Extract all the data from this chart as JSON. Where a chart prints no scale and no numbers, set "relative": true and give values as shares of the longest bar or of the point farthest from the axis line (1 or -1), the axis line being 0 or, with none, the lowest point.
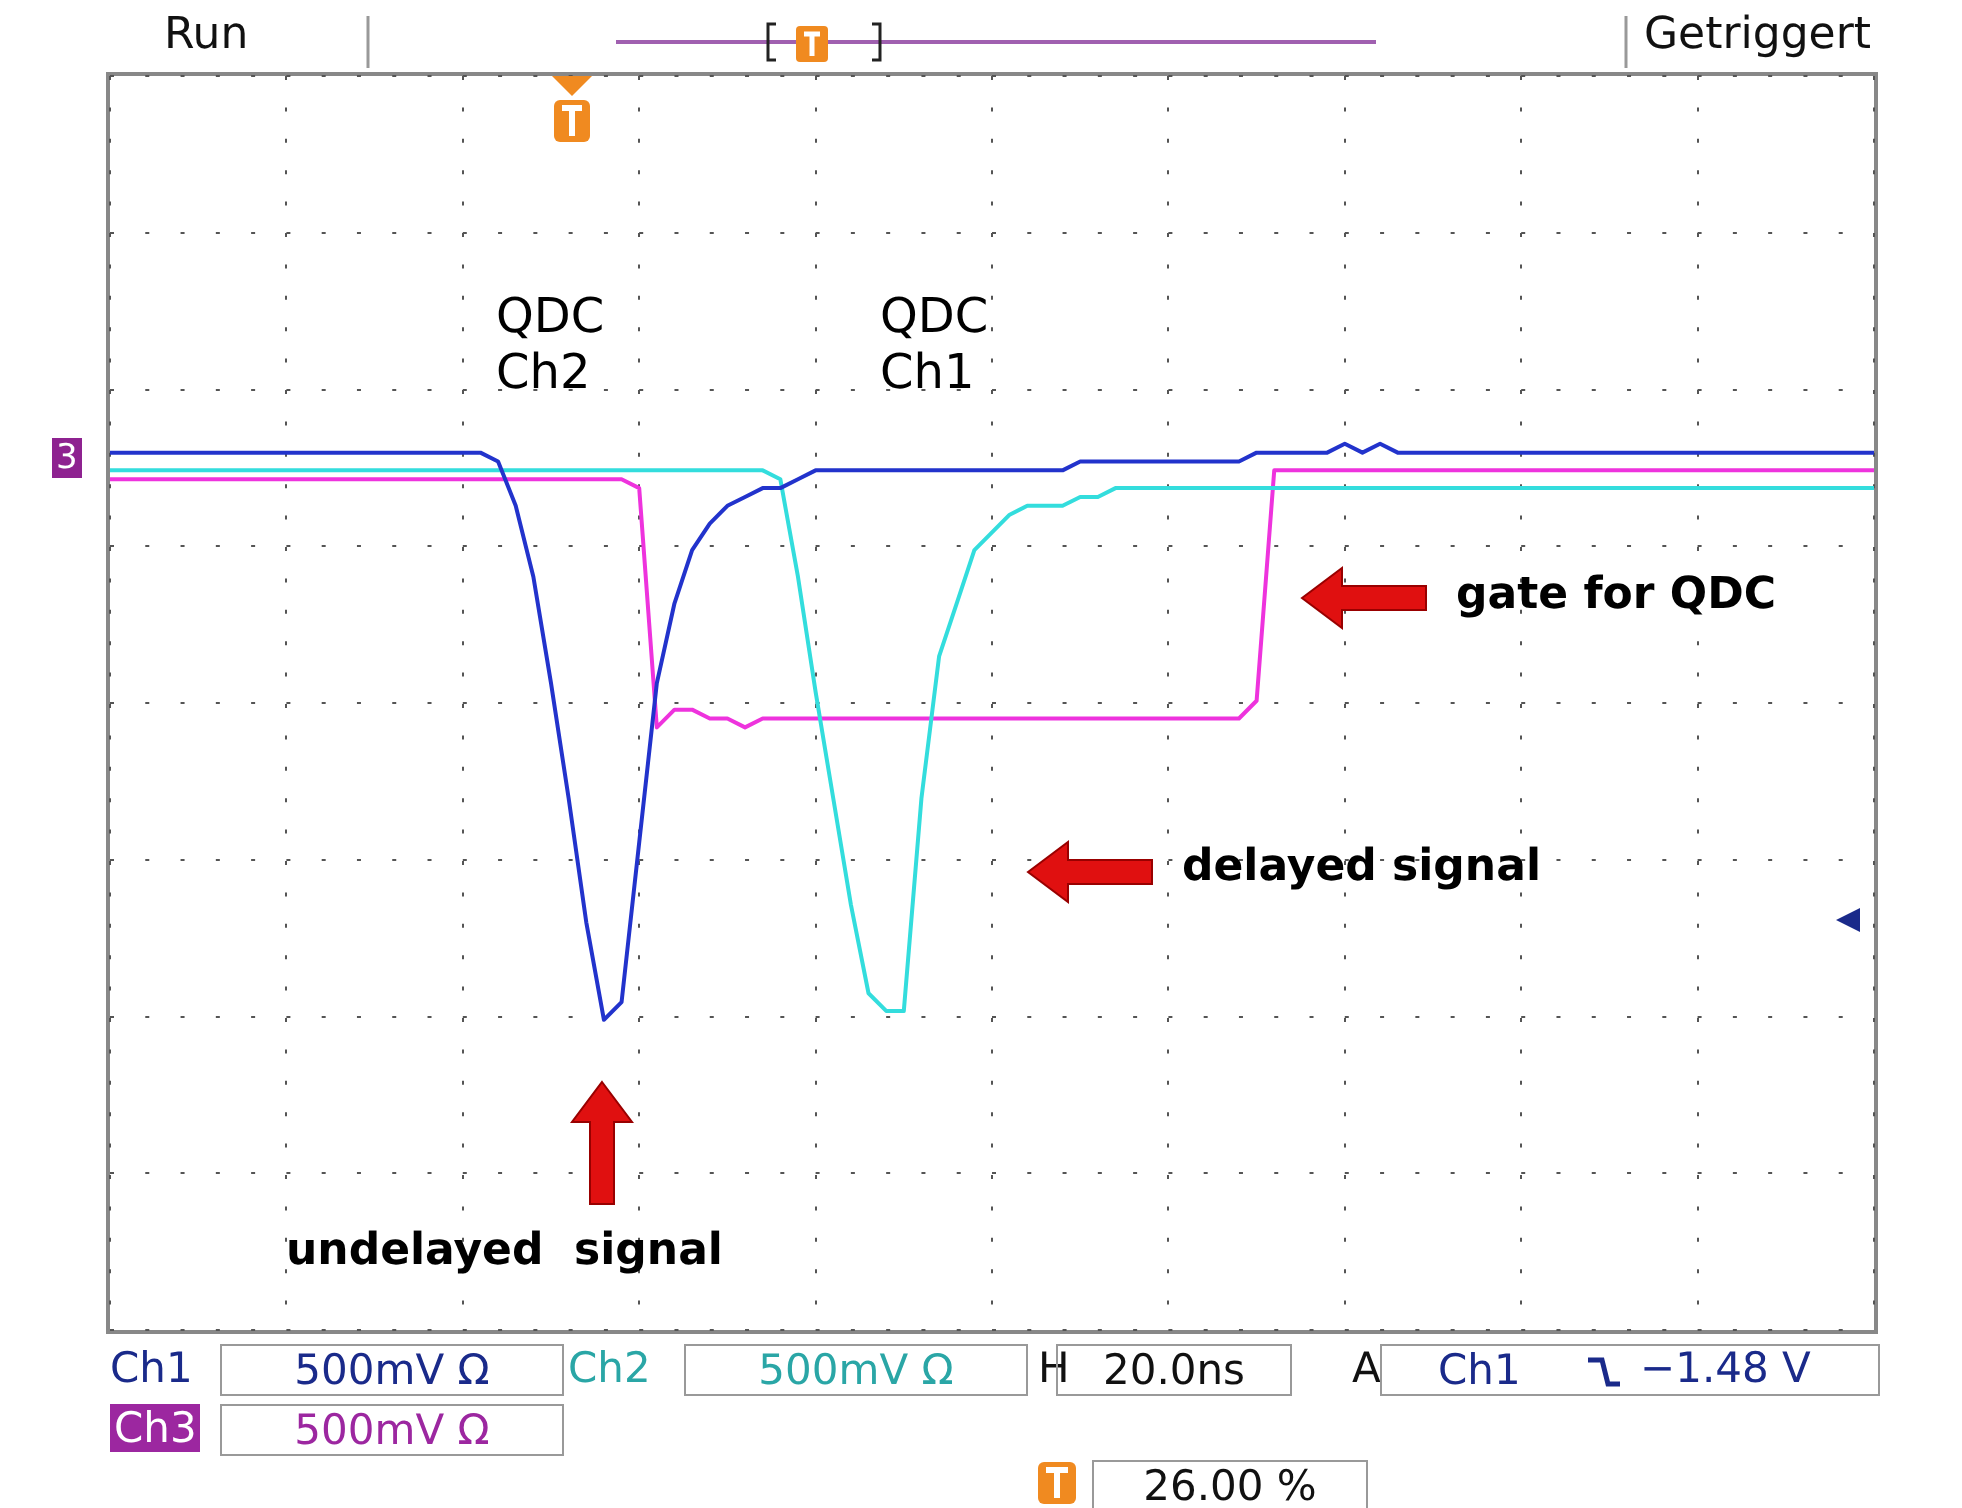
{
  "chart_data": {
    "type": "line",
    "relative": true,
    "grid": true,
    "legend": false,
    "marker": "none",
    "line_style": "solid",
    "categories": [
      null,
      null,
      null,
      null,
      null,
      null,
      null,
      null,
      null,
      null,
      null,
      null,
      null,
      null,
      null,
      null,
      null,
      null,
      null,
      null,
      null,
      null,
      null,
      null,
      null,
      null,
      null,
      null,
      null,
      null,
      null,
      null,
      null,
      null,
      null,
      null,
      null,
      null,
      null,
      null,
      null,
      null,
      null,
      null,
      null,
      null,
      null,
      null,
      null,
      null,
      null,
      null,
      null,
      null,
      null,
      null,
      null,
      null,
      null,
      null,
      null,
      null,
      null,
      null,
      null,
      null,
      null,
      null,
      null,
      null,
      null,
      null,
      null,
      null,
      null,
      null,
      null,
      null,
      null,
      null,
      null,
      null,
      null,
      null,
      null,
      null,
      null,
      null,
      null,
      null,
      null,
      null,
      null,
      null,
      null,
      null,
      null,
      null,
      null,
      null,
      null
    ],
    "series": [
      {
        "color": "#2233cc",
        "values": [
          0.99,
          0.99,
          0.99,
          0.99,
          0.99,
          0.99,
          0.99,
          0.99,
          0.99,
          0.99,
          0.99,
          0.99,
          0.99,
          0.99,
          0.99,
          0.99,
          0.99,
          0.99,
          0.99,
          0.99,
          0.99,
          0.99,
          0.98,
          0.93,
          0.85,
          0.73,
          0.6,
          0.46,
          0.35,
          0.37,
          0.55,
          0.73,
          0.82,
          0.88,
          0.91,
          0.93,
          0.94,
          0.95,
          0.95,
          0.96,
          0.97,
          0.97,
          0.97,
          0.97,
          0.97,
          0.97,
          0.97,
          0.97,
          0.97,
          0.97,
          0.97,
          0.97,
          0.97,
          0.97,
          0.97,
          0.98,
          0.98,
          0.98,
          0.98,
          0.98,
          0.98,
          0.98,
          0.98,
          0.98,
          0.98,
          0.99,
          0.99,
          0.99,
          0.99,
          0.99,
          1,
          0.99,
          1,
          0.99,
          0.99,
          0.99,
          0.99,
          0.99,
          0.99,
          0.99,
          0.99,
          0.99,
          0.99,
          0.99,
          0.99,
          0.99,
          0.99,
          0.99,
          0.99,
          0.99,
          0.99,
          0.99,
          0.99,
          0.99,
          0.99,
          0.99,
          0.99,
          0.99,
          0.99,
          0.99,
          0.99
        ]
      },
      {
        "color": "#33dddd",
        "values": [
          0.97,
          0.97,
          0.97,
          0.97,
          0.97,
          0.97,
          0.97,
          0.97,
          0.97,
          0.97,
          0.97,
          0.97,
          0.97,
          0.97,
          0.97,
          0.97,
          0.97,
          0.97,
          0.97,
          0.97,
          0.97,
          0.97,
          0.97,
          0.97,
          0.97,
          0.97,
          0.97,
          0.97,
          0.97,
          0.97,
          0.97,
          0.97,
          0.97,
          0.97,
          0.97,
          0.97,
          0.97,
          0.97,
          0.96,
          0.85,
          0.72,
          0.6,
          0.48,
          0.38,
          0.36,
          0.36,
          0.6,
          0.76,
          0.82,
          0.88,
          0.9,
          0.92,
          0.93,
          0.93,
          0.93,
          0.94,
          0.94,
          0.95,
          0.95,
          0.95,
          0.95,
          0.95,
          0.95,
          0.95,
          0.95,
          0.95,
          0.95,
          0.95,
          0.95,
          0.95,
          0.95,
          0.95,
          0.95,
          0.95,
          0.95,
          0.95,
          0.95,
          0.95,
          0.95,
          0.95,
          0.95,
          0.95,
          0.95,
          0.95,
          0.95,
          0.95,
          0.95,
          0.95,
          0.95,
          0.95,
          0.95,
          0.95,
          0.95,
          0.95,
          0.95,
          0.95,
          0.95,
          0.95,
          0.95,
          0.95,
          0.95
        ]
      },
      {
        "color": "#ee33dd",
        "values": [
          0.96,
          0.96,
          0.96,
          0.96,
          0.96,
          0.96,
          0.96,
          0.96,
          0.96,
          0.96,
          0.96,
          0.96,
          0.96,
          0.96,
          0.96,
          0.96,
          0.96,
          0.96,
          0.96,
          0.96,
          0.96,
          0.96,
          0.96,
          0.96,
          0.96,
          0.96,
          0.96,
          0.96,
          0.96,
          0.96,
          0.95,
          0.68,
          0.7,
          0.7,
          0.69,
          0.69,
          0.68,
          0.69,
          0.69,
          0.69,
          0.69,
          0.69,
          0.69,
          0.69,
          0.69,
          0.69,
          0.69,
          0.69,
          0.69,
          0.69,
          0.69,
          0.69,
          0.69,
          0.69,
          0.69,
          0.69,
          0.69,
          0.69,
          0.69,
          0.69,
          0.69,
          0.69,
          0.69,
          0.69,
          0.69,
          0.71,
          0.97,
          0.97,
          0.97,
          0.97,
          0.97,
          0.97,
          0.97,
          0.97,
          0.97,
          0.97,
          0.97,
          0.97,
          0.97,
          0.97,
          0.97,
          0.97,
          0.97,
          0.97,
          0.97,
          0.97,
          0.97,
          0.97,
          0.97,
          0.97,
          0.97,
          0.97,
          0.97,
          0.97,
          0.97,
          0.97,
          0.97,
          0.97,
          0.97,
          0.97,
          0.97
        ]
      }
    ],
    "annotations": [
      "Run",
      "Getriggert",
      "QDC\nCh2",
      "QDC\nCh1",
      "gate for QDC",
      "delayed signal",
      "undelayed  signal",
      "Ch1",
      "500mV Ω",
      "Ch2",
      "500mV Ω",
      "H",
      "20.0ns",
      "A",
      "Ch1",
      "−1.48 V",
      "Ch3",
      "500mV Ω",
      "26.00 %",
      "3"
    ]
  }
}
